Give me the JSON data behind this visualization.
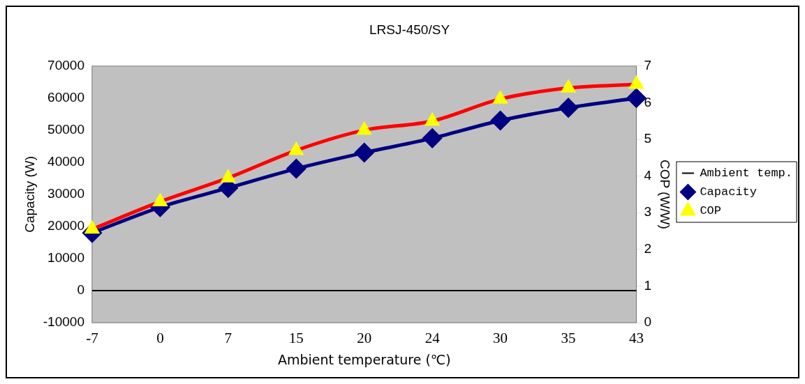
{
  "chart_data": {
    "type": "line",
    "title": "LRSJ-450/SY",
    "xlabel": "Ambient temperature (℃)",
    "ylabel": "Capacity (W)",
    "y2label": "COP (W/W)",
    "categories": [
      "-7",
      "0",
      "7",
      "15",
      "20",
      "24",
      "30",
      "35",
      "43"
    ],
    "series": [
      {
        "name": "Ambient temp.",
        "color": "#000000",
        "values": [
          0,
          0,
          0,
          0,
          0,
          0,
          0,
          0,
          0
        ],
        "marker": "none"
      },
      {
        "name": "Capacity",
        "color": "#000080",
        "values": [
          18000,
          26000,
          32000,
          38000,
          43000,
          47500,
          53000,
          57000,
          60000
        ],
        "marker": "diamond"
      },
      {
        "name": "COP",
        "color": "#ff0000",
        "colors": [
          "#ffff00",
          "#ffff00",
          "#ffff00",
          "#ffff00",
          "#ffff00",
          "#ffff00",
          "#ffff00",
          "#ffff00",
          "#ffff00"
        ],
        "axis": "y2",
        "values": [
          2.55,
          3.3,
          3.95,
          4.7,
          5.25,
          5.5,
          6.1,
          6.4,
          6.5
        ],
        "marker": "triangle"
      }
    ],
    "ylim": [
      -10000,
      70000
    ],
    "yticks": [
      -10000,
      0,
      10000,
      20000,
      30000,
      40000,
      50000,
      60000,
      70000
    ],
    "y2lim": [
      0,
      7
    ],
    "y2ticks": [
      0,
      1,
      2,
      3,
      4,
      5,
      6,
      7
    ],
    "grid": false,
    "legend": "right"
  }
}
